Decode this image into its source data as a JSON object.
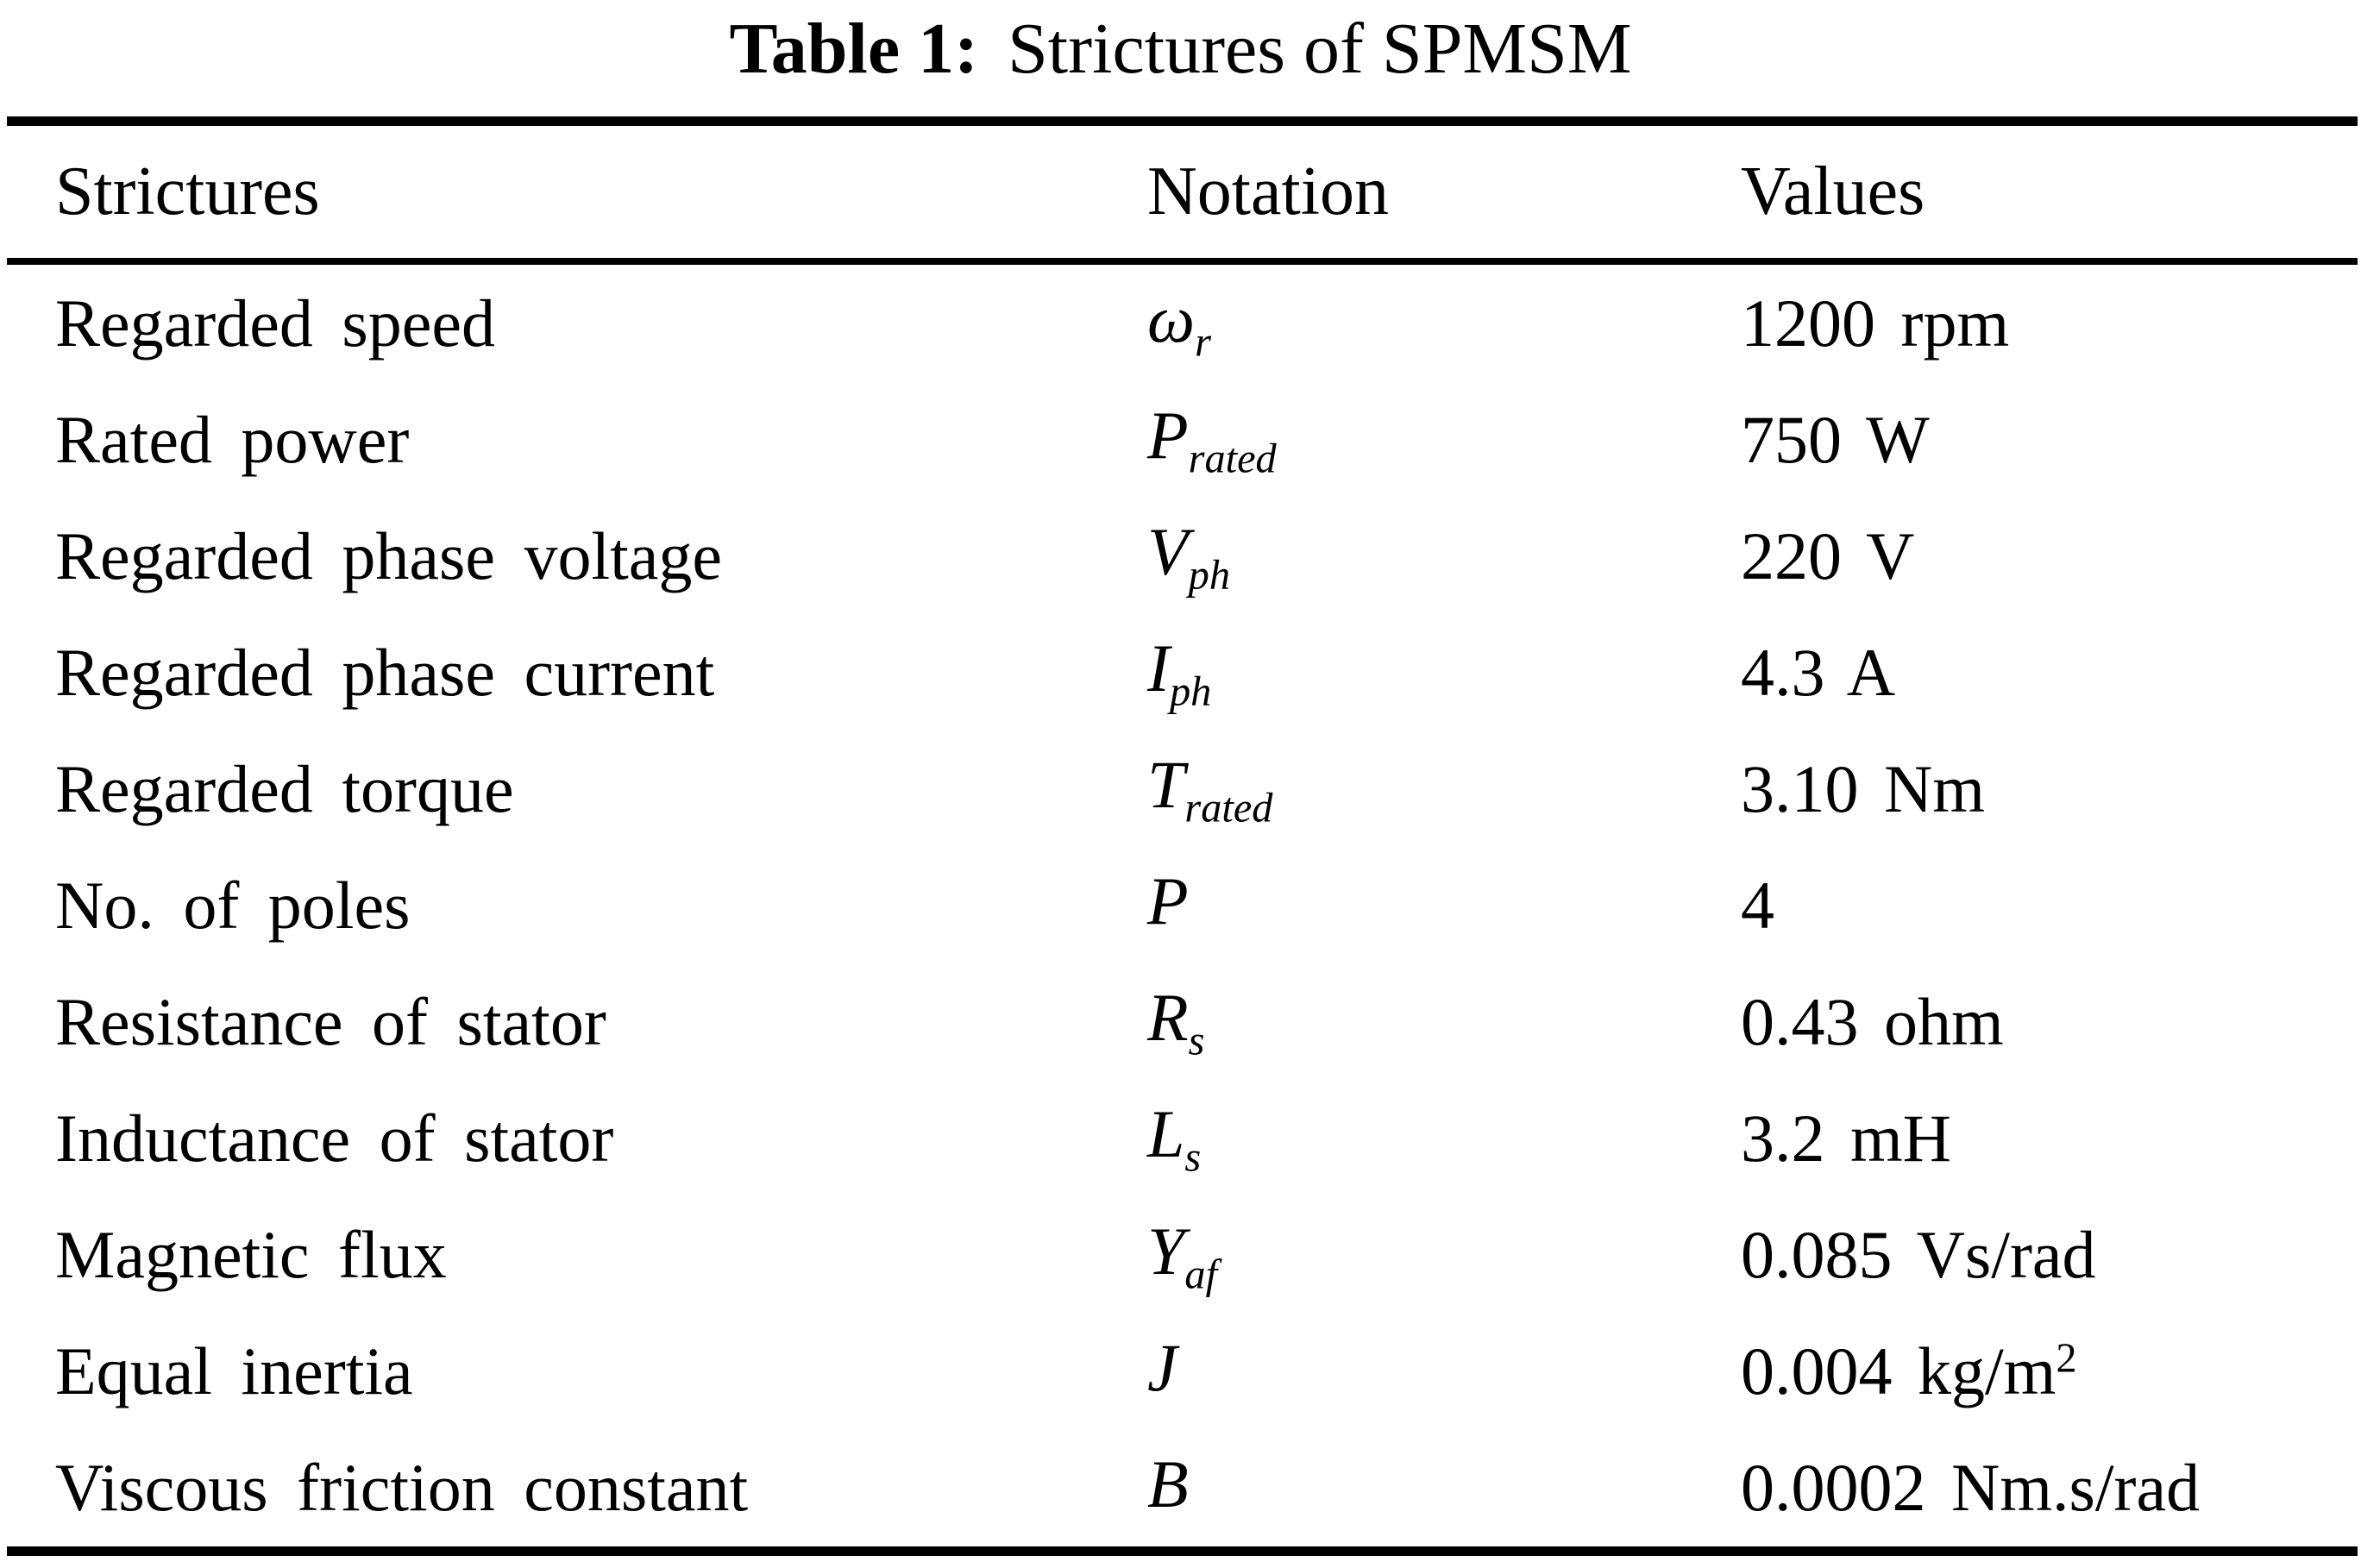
{
  "caption": {
    "label": "Table 1:",
    "text": "Strictures of SPMSM"
  },
  "table": {
    "headers": {
      "strictures": "Strictures",
      "notation": "Notation",
      "values": "Values"
    },
    "rows": [
      {
        "label": "Regarded speed",
        "notation_base": "ω",
        "notation_sub": "r",
        "value": "1200 rpm",
        "value_sup": ""
      },
      {
        "label": "Rated power",
        "notation_base": "P",
        "notation_sub": "rated",
        "value": "750 W",
        "value_sup": ""
      },
      {
        "label": "Regarded phase voltage",
        "notation_base": "V",
        "notation_sub": "ph",
        "value": "220 V",
        "value_sup": ""
      },
      {
        "label": "Regarded phase current",
        "notation_base": "I",
        "notation_sub": "ph",
        "value": "4.3 A",
        "value_sup": ""
      },
      {
        "label": "Regarded torque",
        "notation_base": "T",
        "notation_sub": "rated",
        "value": "3.10 Nm",
        "value_sup": ""
      },
      {
        "label": "No. of poles",
        "notation_base": "P",
        "notation_sub": "",
        "value": "4",
        "value_sup": ""
      },
      {
        "label": "Resistance of stator",
        "notation_base": "R",
        "notation_sub": "s",
        "value": "0.43 ohm",
        "value_sup": ""
      },
      {
        "label": "Inductance of stator",
        "notation_base": "L",
        "notation_sub": "s",
        "value": "3.2 mH",
        "value_sup": ""
      },
      {
        "label": "Magnetic flux",
        "notation_base": "Y",
        "notation_sub": "af",
        "value": "0.085 Vs/rad",
        "value_sup": ""
      },
      {
        "label": "Equal inertia",
        "notation_base": "J",
        "notation_sub": "",
        "value": "0.004 kg/m",
        "value_sup": "2"
      },
      {
        "label": "Viscous friction constant",
        "notation_base": "B",
        "notation_sub": "",
        "value": "0.0002 Nm.s/rad",
        "value_sup": ""
      }
    ]
  }
}
